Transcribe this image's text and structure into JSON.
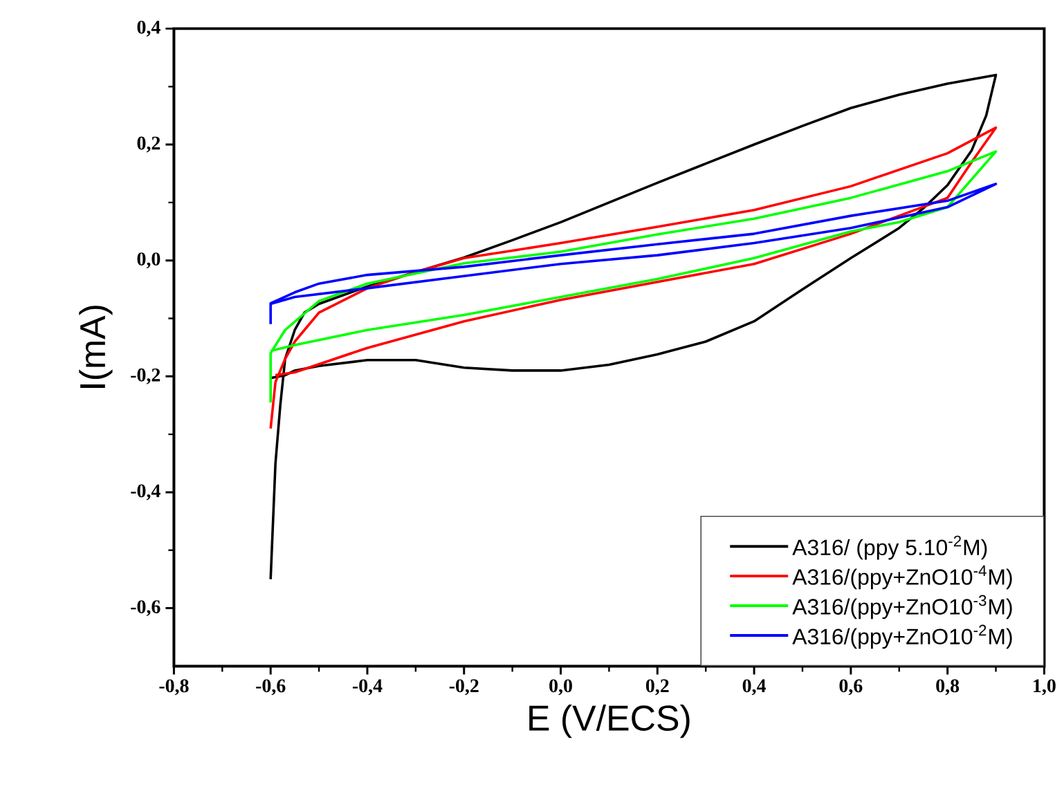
{
  "chart_data": {
    "type": "line",
    "xlabel": "E (V/ECS)",
    "ylabel": "I(mA)",
    "xlim": [
      -0.8,
      1.0
    ],
    "ylim": [
      -0.7,
      0.4
    ],
    "xticks": [
      {
        "value": -0.8,
        "label": "-0,8"
      },
      {
        "value": -0.6,
        "label": "-0,6"
      },
      {
        "value": -0.4,
        "label": "-0,4"
      },
      {
        "value": -0.2,
        "label": "-0,2"
      },
      {
        "value": 0.0,
        "label": "0,0"
      },
      {
        "value": 0.2,
        "label": "0,2"
      },
      {
        "value": 0.4,
        "label": "0,4"
      },
      {
        "value": 0.6,
        "label": "0,6"
      },
      {
        "value": 0.8,
        "label": "0,8"
      },
      {
        "value": 1.0,
        "label": "1,0"
      }
    ],
    "yticks": [
      {
        "value": -0.6,
        "label": "-0,6"
      },
      {
        "value": -0.4,
        "label": "-0,4"
      },
      {
        "value": -0.2,
        "label": "-0,2"
      },
      {
        "value": 0.0,
        "label": "0,0"
      },
      {
        "value": 0.2,
        "label": "0,2"
      },
      {
        "value": 0.4,
        "label": "0,4"
      }
    ],
    "legend": "bottom right",
    "series": [
      {
        "name": "A316/ (ppy 5.10$^{-2}$M)",
        "color": "#000000",
        "x": [
          -0.6,
          -0.595,
          -0.59,
          -0.58,
          -0.57,
          -0.55,
          -0.53,
          -0.5,
          -0.4,
          -0.3,
          -0.2,
          -0.1,
          0.0,
          0.2,
          0.3,
          0.4,
          0.5,
          0.6,
          0.7,
          0.8,
          0.9,
          0.88,
          0.85,
          0.8,
          0.75,
          0.7,
          0.6,
          0.5,
          0.4,
          0.3,
          0.2,
          0.1,
          0.0,
          -0.1,
          -0.2,
          -0.3,
          -0.4,
          -0.5,
          -0.55,
          -0.57,
          -0.6
        ],
        "values": [
          -0.55,
          -0.45,
          -0.35,
          -0.25,
          -0.17,
          -0.12,
          -0.09,
          -0.075,
          -0.045,
          -0.02,
          0.005,
          0.035,
          0.066,
          0.134,
          0.167,
          0.2,
          0.232,
          0.263,
          0.286,
          0.305,
          0.32,
          0.25,
          0.19,
          0.13,
          0.09,
          0.056,
          0.004,
          -0.05,
          -0.105,
          -0.14,
          -0.162,
          -0.18,
          -0.19,
          -0.19,
          -0.185,
          -0.172,
          -0.172,
          -0.182,
          -0.19,
          -0.198,
          -0.203
        ]
      },
      {
        "name": "A316/(ppy+ZnO10$^{-4}$M)",
        "color": "#ff0000",
        "x": [
          -0.6,
          -0.595,
          -0.59,
          -0.57,
          -0.55,
          -0.5,
          -0.4,
          -0.3,
          -0.2,
          -0.1,
          0.0,
          0.2,
          0.4,
          0.6,
          0.8,
          0.9,
          0.85,
          0.8,
          0.7,
          0.6,
          0.4,
          0.0,
          -0.2,
          -0.4,
          -0.55,
          -0.59
        ],
        "values": [
          -0.29,
          -0.25,
          -0.21,
          -0.17,
          -0.14,
          -0.09,
          -0.048,
          -0.02,
          0.004,
          0.017,
          0.03,
          0.058,
          0.087,
          0.128,
          0.185,
          0.229,
          0.17,
          0.108,
          0.077,
          0.046,
          -0.006,
          -0.068,
          -0.105,
          -0.151,
          -0.193,
          -0.198
        ]
      },
      {
        "name": "A316/(ppy+ZnO10$^{-3}$M)",
        "color": "#00ff00",
        "x": [
          -0.6,
          -0.6,
          -0.57,
          -0.5,
          -0.4,
          -0.2,
          0.0,
          0.2,
          0.4,
          0.6,
          0.8,
          0.9,
          0.85,
          0.8,
          0.7,
          0.6,
          0.4,
          0.2,
          0.0,
          -0.2,
          -0.4,
          -0.55,
          -0.6
        ],
        "values": [
          -0.245,
          -0.16,
          -0.12,
          -0.07,
          -0.04,
          -0.005,
          0.015,
          0.045,
          0.072,
          0.108,
          0.154,
          0.188,
          0.14,
          0.092,
          0.066,
          0.05,
          0.004,
          -0.032,
          -0.063,
          -0.094,
          -0.12,
          -0.146,
          -0.156
        ]
      },
      {
        "name": "A316/(ppy+ZnO10$^{-2}$M)",
        "color": "#0000ff",
        "x": [
          -0.6,
          -0.6,
          -0.55,
          -0.5,
          -0.4,
          -0.2,
          0.0,
          0.2,
          0.4,
          0.6,
          0.8,
          0.9,
          0.8,
          0.6,
          0.4,
          0.2,
          0.0,
          -0.2,
          -0.4,
          -0.55,
          -0.6
        ],
        "values": [
          -0.11,
          -0.074,
          -0.055,
          -0.04,
          -0.025,
          -0.011,
          0.009,
          0.028,
          0.046,
          0.077,
          0.103,
          0.132,
          0.092,
          0.056,
          0.03,
          0.009,
          -0.006,
          -0.027,
          -0.048,
          -0.063,
          -0.075
        ]
      }
    ]
  }
}
